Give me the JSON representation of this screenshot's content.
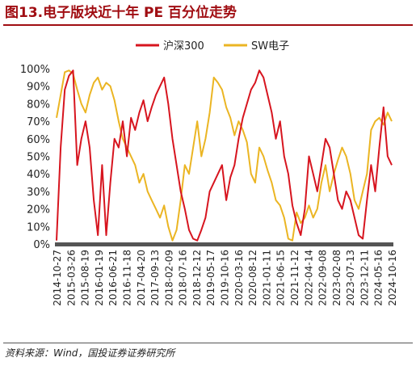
{
  "figure": {
    "title": "图13.电子版块近十年 PE 百分位走势",
    "source": "资料来源：Wind，国投证券证券研究所"
  },
  "chart_data": {
    "type": "line",
    "xlabel": "",
    "ylabel": "",
    "ylim": [
      0,
      100
    ],
    "yticks": [
      "0%",
      "10%",
      "20%",
      "30%",
      "40%",
      "50%",
      "60%",
      "70%",
      "80%",
      "90%",
      "100%"
    ],
    "xticks": [
      "2014-10-27",
      "2015-03-26",
      "2015-08-19",
      "2016-01-19",
      "2016-06-21",
      "2016-11-18",
      "2017-04-20",
      "2017-09-13",
      "2018-02-09",
      "2018-07-16",
      "2018-12-12",
      "2019-05-17",
      "2019-10-16",
      "2020-03-16",
      "2020-08-12",
      "2021-01-11",
      "2021-06-15",
      "2021-11-12",
      "2022-04-14",
      "2022-09-08",
      "2023-02-08",
      "2023-07-13",
      "2023-12-11",
      "2024-05-16",
      "2024-10-16"
    ],
    "legend": {
      "position": "top"
    },
    "grid": false,
    "series": [
      {
        "name": "沪深300",
        "color": "#d7151f",
        "values": [
          2,
          55,
          88,
          96,
          99,
          45,
          60,
          70,
          55,
          25,
          5,
          45,
          5,
          35,
          60,
          55,
          70,
          50,
          72,
          65,
          75,
          82,
          70,
          78,
          85,
          90,
          95,
          80,
          60,
          45,
          30,
          20,
          8,
          3,
          2,
          8,
          15,
          30,
          35,
          40,
          45,
          25,
          38,
          45,
          60,
          72,
          80,
          88,
          92,
          99,
          95,
          85,
          75,
          60,
          70,
          50,
          40,
          22,
          12,
          5,
          20,
          50,
          40,
          30,
          45,
          60,
          55,
          40,
          25,
          20,
          30,
          25,
          15,
          5,
          3,
          25,
          45,
          30,
          55,
          78,
          50,
          45
        ]
      },
      {
        "name": "SW电子",
        "color": "#ebb523",
        "values": [
          72,
          85,
          98,
          99,
          97,
          88,
          80,
          75,
          85,
          92,
          95,
          88,
          92,
          90,
          82,
          70,
          60,
          55,
          50,
          45,
          35,
          40,
          30,
          25,
          20,
          15,
          22,
          10,
          2,
          8,
          25,
          45,
          40,
          55,
          70,
          50,
          60,
          75,
          95,
          92,
          88,
          78,
          72,
          62,
          70,
          65,
          58,
          40,
          35,
          55,
          50,
          42,
          35,
          25,
          22,
          15,
          3,
          2,
          18,
          12,
          15,
          22,
          15,
          20,
          35,
          45,
          30,
          40,
          48,
          55,
          50,
          40,
          25,
          20,
          30,
          40,
          65,
          70,
          72,
          68,
          75,
          70
        ]
      }
    ]
  }
}
